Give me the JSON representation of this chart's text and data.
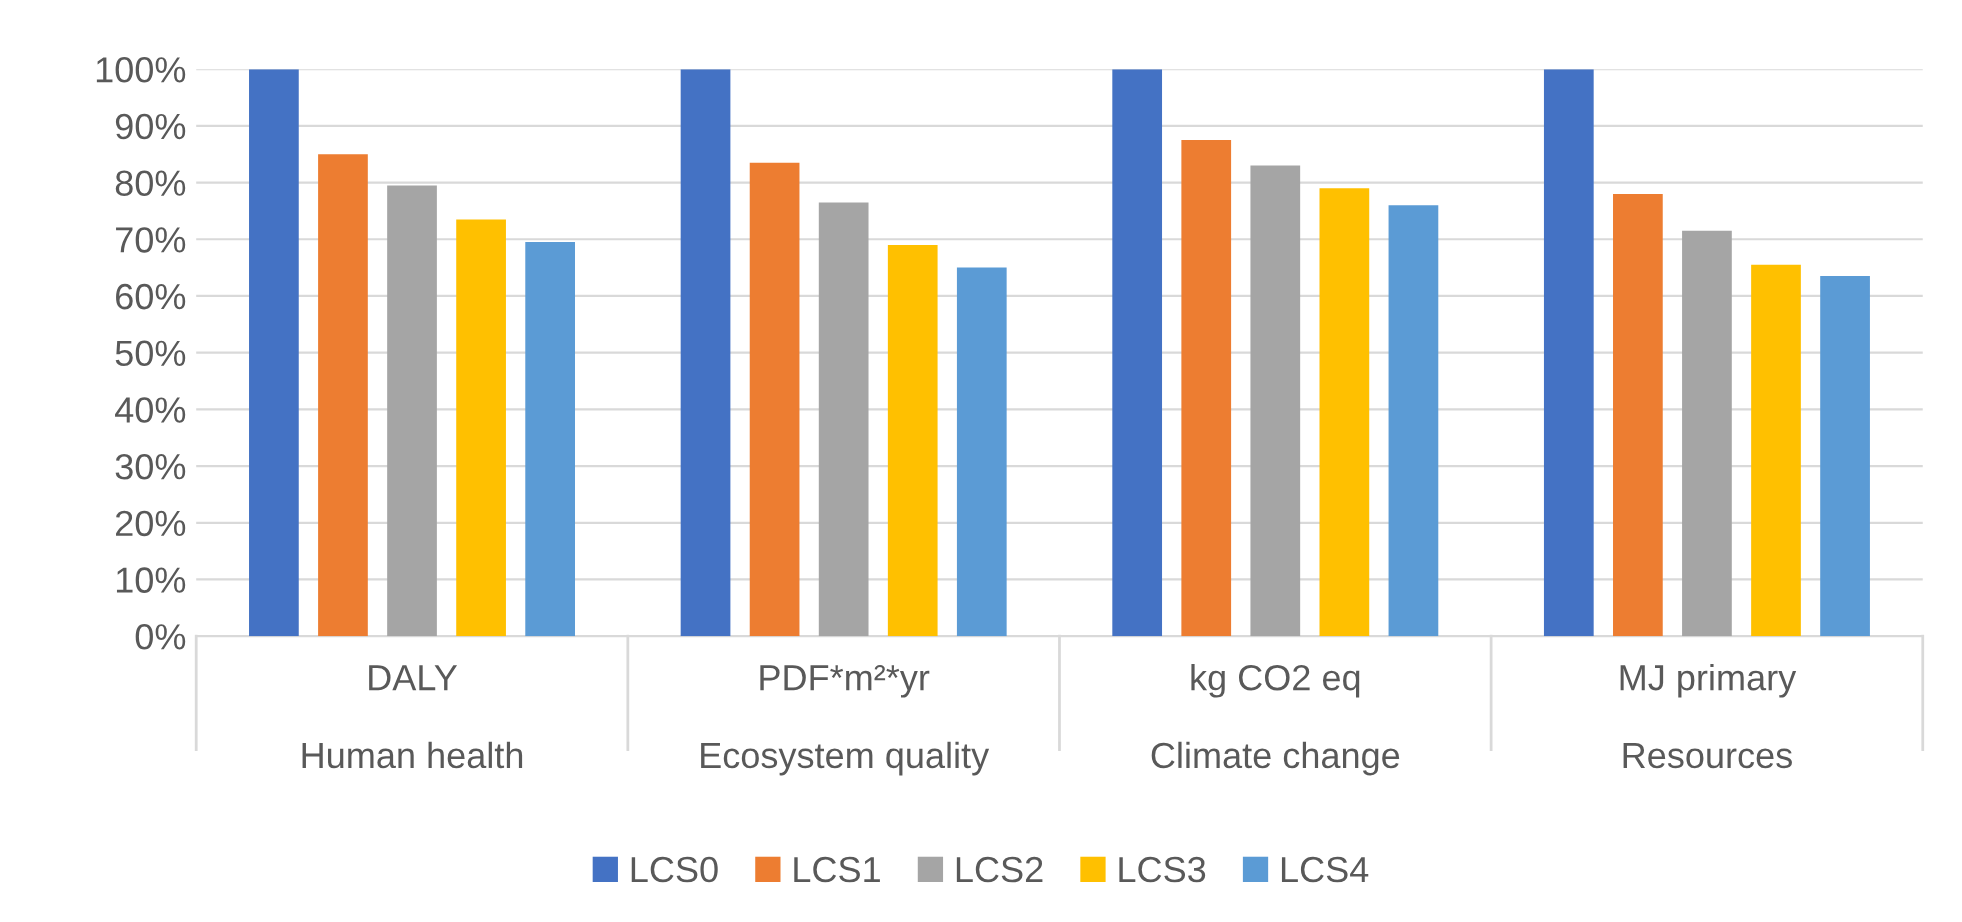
{
  "chart_data": {
    "type": "bar",
    "categories": [
      "DALY\nHuman health",
      "PDF*m²*yr\nEcosystem quality",
      "kg CO2 eq\nClimate change",
      "MJ primary\nResources"
    ],
    "series": [
      {
        "name": "LCS0",
        "color": "#4472c4",
        "values": [
          100,
          100,
          100,
          100
        ]
      },
      {
        "name": "LCS1",
        "color": "#ed7d31",
        "values": [
          85,
          83.5,
          87.5,
          78
        ]
      },
      {
        "name": "LCS2",
        "color": "#a5a5a5",
        "values": [
          79.5,
          76.5,
          83,
          71.5
        ]
      },
      {
        "name": "LCS3",
        "color": "#ffc000",
        "values": [
          73.5,
          69,
          79,
          65.5
        ]
      },
      {
        "name": "LCS4",
        "color": "#5b9bd5",
        "values": [
          69.5,
          65,
          76,
          63.5
        ]
      }
    ],
    "ylim": [
      0,
      100
    ],
    "yticks": [
      {
        "value": 0,
        "label": "0%"
      },
      {
        "value": 10,
        "label": "10%"
      },
      {
        "value": 20,
        "label": "20%"
      },
      {
        "value": 30,
        "label": "30%"
      },
      {
        "value": 40,
        "label": "40%"
      },
      {
        "value": 50,
        "label": "50%"
      },
      {
        "value": 60,
        "label": "60%"
      },
      {
        "value": 70,
        "label": "70%"
      },
      {
        "value": 80,
        "label": "80%"
      },
      {
        "value": 90,
        "label": "90%"
      },
      {
        "value": 100,
        "label": "100%"
      }
    ],
    "grid": "y",
    "legend": "bottom"
  }
}
